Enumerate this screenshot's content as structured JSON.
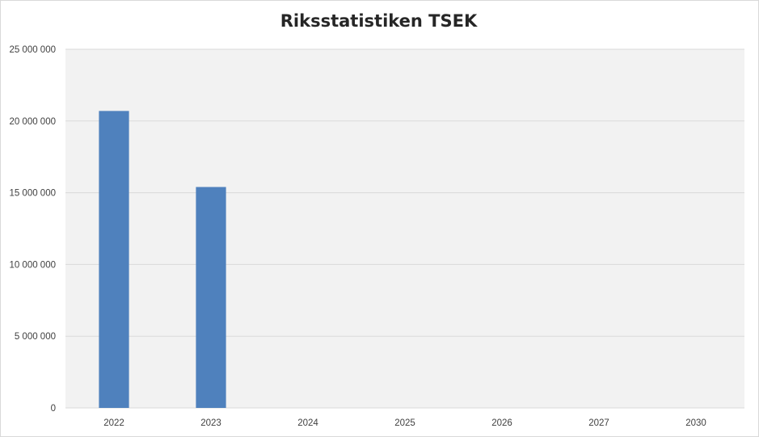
{
  "chart_data": {
    "type": "bar",
    "title": "Riksstatistiken TSEK",
    "categories": [
      "2022",
      "2023",
      "2024",
      "2025",
      "2026",
      "2027",
      "2030"
    ],
    "values": [
      20700000,
      15400000,
      0,
      0,
      0,
      0,
      0
    ],
    "ylim": [
      0,
      25000000
    ],
    "yticks": [
      0,
      5000000,
      10000000,
      15000000,
      20000000,
      25000000
    ],
    "ytick_labels": [
      "0",
      "5 000 000",
      "10 000 000",
      "15 000 000",
      "20 000 000",
      "25 000 000"
    ],
    "xlabel": "",
    "ylabel": "",
    "grid": true,
    "legend": "none",
    "colors": {
      "bar": "#4f81bd",
      "plot_bg": "#f2f2f2",
      "grid": "#d9d9d9",
      "text": "#404040"
    }
  }
}
